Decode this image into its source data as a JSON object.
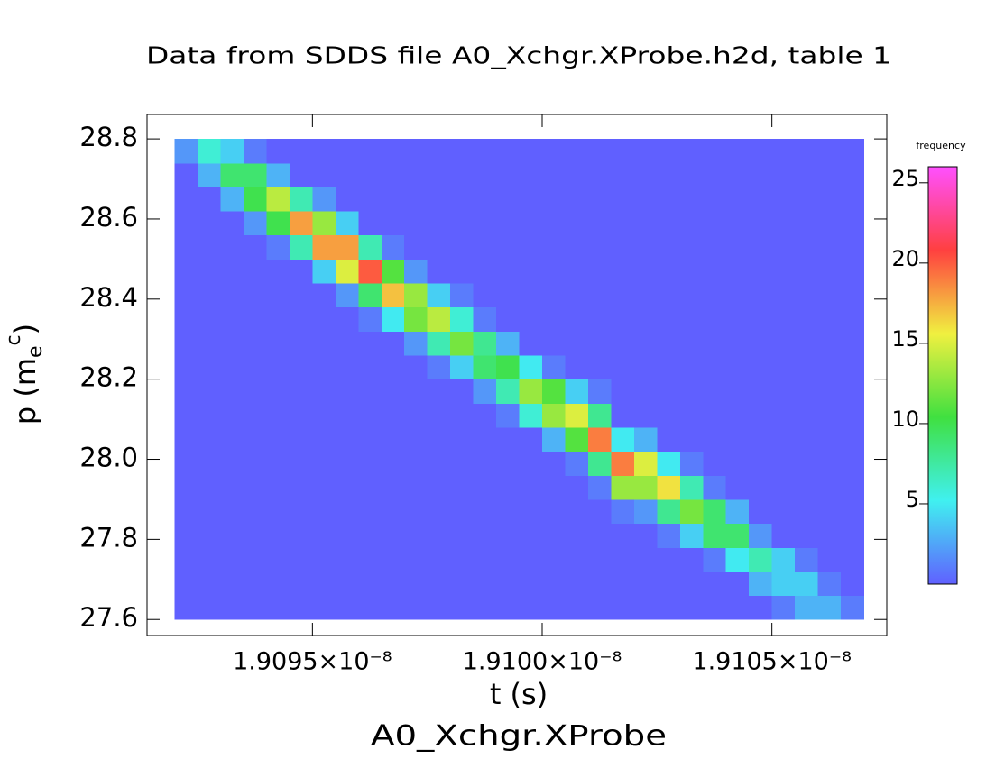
{
  "chart_data": {
    "type": "heatmap",
    "title": "Data from SDDS file A0_Xchgr.XProbe.h2d, table 1",
    "xlabel": "t (s)",
    "ylabel": {
      "text": "p (m",
      "subscript": "e",
      "superscript": "c",
      "close": ")"
    },
    "footer": "A0_Xchgr.XProbe",
    "colorbar_label": "frequency",
    "colorscale": [
      "#6060ff",
      "#40f0f0",
      "#40e040",
      "#f0f040",
      "#ff4040",
      "#ff50ff"
    ],
    "xlim": [
      1.90914e-08,
      1.91075e-08
    ],
    "ylim": [
      27.56,
      28.861
    ],
    "zlim": [
      0,
      26
    ],
    "xticks": [
      {
        "value": 1.9095e-08,
        "label": "1.9095×10⁻⁸"
      },
      {
        "value": 1.91e-08,
        "label": "1.9100×10⁻⁸"
      },
      {
        "value": 1.9105e-08,
        "label": "1.9105×10⁻⁸"
      }
    ],
    "yticks": [
      27.6,
      27.8,
      {
        "value": 28,
        "label": "28.0"
      },
      28.2,
      28.4,
      28.6,
      28.8
    ],
    "zticks": [
      5,
      10,
      15,
      20,
      25
    ],
    "xbins": [
      1.9092e-08,
      1.90925e-08,
      1.9093e-08,
      1.90935e-08,
      1.9094e-08,
      1.90945e-08,
      1.9095e-08,
      1.90955e-08,
      1.9096e-08,
      1.90965e-08,
      1.9097e-08,
      1.90975e-08,
      1.9098e-08,
      1.90985e-08,
      1.9099e-08,
      1.90995e-08,
      1.91e-08,
      1.91005e-08,
      1.9101e-08,
      1.91015e-08,
      1.9102e-08,
      1.91025e-08,
      1.9103e-08,
      1.91035e-08,
      1.9104e-08,
      1.91045e-08,
      1.9105e-08,
      1.91055e-08,
      1.9106e-08,
      1.91065e-08,
      1.9107e-08
    ],
    "ybins": [
      27.6,
      27.66,
      27.72,
      27.78,
      27.84,
      27.9,
      27.96,
      28.02,
      28.08,
      28.14,
      28.2,
      28.26,
      28.32,
      28.38,
      28.44,
      28.5,
      28.56,
      28.62,
      28.68,
      28.74,
      28.8
    ],
    "z": [
      [
        0,
        0,
        0,
        0,
        0,
        0,
        0,
        0,
        0,
        0,
        0,
        0,
        0,
        0,
        0,
        0,
        0,
        0,
        0,
        0,
        0,
        0,
        0,
        0,
        0,
        0,
        1,
        3,
        3,
        1
      ],
      [
        0,
        0,
        0,
        0,
        0,
        0,
        0,
        0,
        0,
        0,
        0,
        0,
        0,
        0,
        0,
        0,
        0,
        0,
        0,
        0,
        0,
        0,
        0,
        0,
        0,
        3,
        4,
        4,
        1,
        0
      ],
      [
        0,
        0,
        0,
        0,
        0,
        0,
        0,
        0,
        0,
        0,
        0,
        0,
        0,
        0,
        0,
        0,
        0,
        0,
        0,
        0,
        0,
        0,
        0,
        1,
        5,
        7,
        4,
        1,
        0,
        0
      ],
      [
        0,
        0,
        0,
        0,
        0,
        0,
        0,
        0,
        0,
        0,
        0,
        0,
        0,
        0,
        0,
        0,
        0,
        0,
        0,
        0,
        0,
        1,
        4,
        9,
        9,
        2,
        0,
        0,
        0,
        0
      ],
      [
        0,
        0,
        0,
        0,
        0,
        0,
        0,
        0,
        0,
        0,
        0,
        0,
        0,
        0,
        0,
        0,
        0,
        0,
        0,
        1,
        2,
        8,
        12,
        9,
        3,
        0,
        0,
        0,
        0,
        0
      ],
      [
        0,
        0,
        0,
        0,
        0,
        0,
        0,
        0,
        0,
        0,
        0,
        0,
        0,
        0,
        0,
        0,
        0,
        0,
        1,
        13,
        13,
        16,
        7,
        1,
        0,
        0,
        0,
        0,
        0,
        0
      ],
      [
        0,
        0,
        0,
        0,
        0,
        0,
        0,
        0,
        0,
        0,
        0,
        0,
        0,
        0,
        0,
        0,
        0,
        1,
        8,
        19,
        15,
        5,
        1,
        0,
        0,
        0,
        0,
        0,
        0,
        0
      ],
      [
        0,
        0,
        0,
        0,
        0,
        0,
        0,
        0,
        0,
        0,
        0,
        0,
        0,
        0,
        0,
        0,
        3,
        11,
        19,
        5,
        3,
        0,
        0,
        0,
        0,
        0,
        0,
        0,
        0,
        0
      ],
      [
        0,
        0,
        0,
        0,
        0,
        0,
        0,
        0,
        0,
        0,
        0,
        0,
        0,
        0,
        1,
        6,
        13,
        15,
        8,
        0,
        0,
        0,
        0,
        0,
        0,
        0,
        0,
        0,
        0,
        0
      ],
      [
        0,
        0,
        0,
        0,
        0,
        0,
        0,
        0,
        0,
        0,
        0,
        0,
        0,
        2,
        7,
        13,
        11,
        4,
        1,
        0,
        0,
        0,
        0,
        0,
        0,
        0,
        0,
        0,
        0,
        0
      ],
      [
        0,
        0,
        0,
        0,
        0,
        0,
        0,
        0,
        0,
        0,
        0,
        1,
        4,
        9,
        10,
        5,
        1,
        0,
        0,
        0,
        0,
        0,
        0,
        0,
        0,
        0,
        0,
        0,
        0,
        0
      ],
      [
        0,
        0,
        0,
        0,
        0,
        0,
        0,
        0,
        0,
        0,
        2,
        7,
        12,
        8,
        3,
        0,
        0,
        0,
        0,
        0,
        0,
        0,
        0,
        0,
        0,
        0,
        0,
        0,
        0,
        0
      ],
      [
        0,
        0,
        0,
        0,
        0,
        0,
        0,
        0,
        1,
        5,
        12,
        14,
        6,
        1,
        0,
        0,
        0,
        0,
        0,
        0,
        0,
        0,
        0,
        0,
        0,
        0,
        0,
        0,
        0,
        0
      ],
      [
        0,
        0,
        0,
        0,
        0,
        0,
        0,
        2,
        9,
        17,
        13,
        4,
        1,
        0,
        0,
        0,
        0,
        0,
        0,
        0,
        0,
        0,
        0,
        0,
        0,
        0,
        0,
        0,
        0,
        0
      ],
      [
        0,
        0,
        0,
        0,
        0,
        0,
        4,
        15,
        20,
        11,
        2,
        0,
        0,
        0,
        0,
        0,
        0,
        0,
        0,
        0,
        0,
        0,
        0,
        0,
        0,
        0,
        0,
        0,
        0,
        0
      ],
      [
        0,
        0,
        0,
        0,
        1,
        7,
        18,
        18,
        7,
        1,
        0,
        0,
        0,
        0,
        0,
        0,
        0,
        0,
        0,
        0,
        0,
        0,
        0,
        0,
        0,
        0,
        0,
        0,
        0,
        0
      ],
      [
        0,
        0,
        0,
        2,
        10,
        18,
        13,
        4,
        0,
        0,
        0,
        0,
        0,
        0,
        0,
        0,
        0,
        0,
        0,
        0,
        0,
        0,
        0,
        0,
        0,
        0,
        0,
        0,
        0,
        0
      ],
      [
        0,
        0,
        3,
        10,
        14,
        7,
        2,
        0,
        0,
        0,
        0,
        0,
        0,
        0,
        0,
        0,
        0,
        0,
        0,
        0,
        0,
        0,
        0,
        0,
        0,
        0,
        0,
        0,
        0,
        0
      ],
      [
        0,
        3,
        9,
        9,
        3,
        0,
        0,
        0,
        0,
        0,
        0,
        0,
        0,
        0,
        0,
        0,
        0,
        0,
        0,
        0,
        0,
        0,
        0,
        0,
        0,
        0,
        0,
        0,
        0,
        0
      ],
      [
        2,
        6,
        4,
        1,
        0,
        0,
        0,
        0,
        0,
        0,
        0,
        0,
        0,
        0,
        0,
        0,
        0,
        0,
        0,
        0,
        0,
        0,
        0,
        0,
        0,
        0,
        0,
        0,
        0,
        0
      ]
    ]
  }
}
